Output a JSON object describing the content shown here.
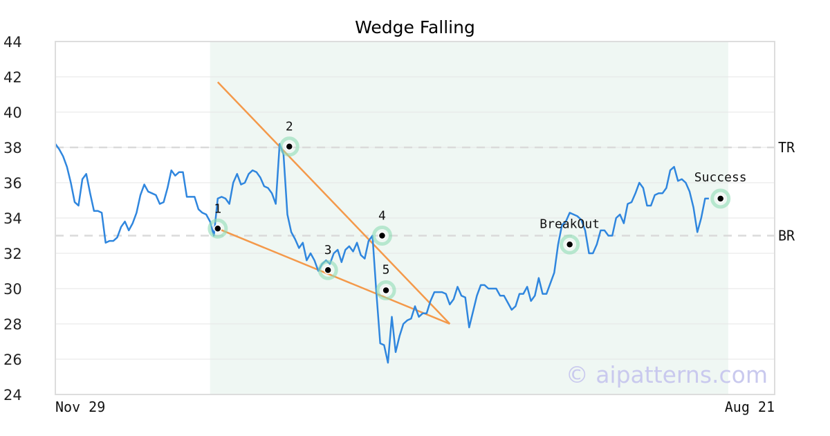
{
  "chart_data": {
    "type": "line",
    "title": "Wedge Falling",
    "ylim": [
      24,
      44
    ],
    "yticks": [
      24,
      26,
      28,
      30,
      32,
      34,
      36,
      38,
      40,
      42,
      44
    ],
    "xlim": [
      0,
      186
    ],
    "xtick_labels": [
      {
        "x": 0,
        "label": "Nov 29"
      },
      {
        "x": 186,
        "label": "Aug 21"
      }
    ],
    "grid": true,
    "shaded_region": {
      "x0": 40,
      "x1": 174,
      "color": "#eff7f3"
    },
    "series": [
      {
        "color": "#2f86de",
        "values": [
          38.2,
          37.9,
          37.5,
          36.9,
          36.0,
          34.9,
          34.7,
          36.2,
          36.5,
          35.4,
          34.4,
          34.4,
          34.3,
          32.6,
          32.7,
          32.7,
          32.9,
          33.5,
          33.8,
          33.3,
          33.7,
          34.3,
          35.3,
          35.9,
          35.5,
          35.4,
          35.3,
          34.8,
          34.9,
          35.7,
          36.7,
          36.4,
          36.6,
          36.6,
          35.2,
          35.2,
          35.2,
          34.5,
          34.3,
          34.2,
          33.8,
          33.0,
          35.1,
          35.2,
          35.1,
          34.8,
          36.0,
          36.5,
          35.9,
          36.0,
          36.5,
          36.7,
          36.6,
          36.3,
          35.8,
          35.7,
          35.4,
          34.8,
          38.2,
          37.6,
          34.2,
          33.2,
          32.8,
          32.3,
          32.6,
          31.6,
          32.0,
          31.6,
          31.0,
          31.4,
          31.6,
          31.4,
          32.0,
          32.2,
          31.5,
          32.2,
          32.4,
          32.1,
          32.6,
          31.9,
          31.7,
          32.7,
          33.0,
          29.8,
          26.9,
          26.8,
          25.8,
          28.4,
          26.4,
          27.3,
          28.0,
          28.2,
          28.3,
          29.0,
          28.4,
          28.6,
          28.6,
          29.3,
          29.8,
          29.8,
          29.8,
          29.7,
          29.1,
          29.4,
          30.1,
          29.6,
          29.5,
          27.8,
          28.7,
          29.6,
          30.2,
          30.2,
          30.0,
          30.0,
          30.0,
          29.6,
          29.6,
          29.2,
          28.8,
          29.0,
          29.7,
          29.7,
          30.1,
          29.3,
          29.6,
          30.6,
          29.7,
          29.7,
          30.3,
          30.9,
          32.5,
          33.6,
          33.8,
          34.3,
          34.2,
          34.1,
          33.9,
          33.3,
          32.0,
          32.0,
          32.5,
          33.3,
          33.3,
          33.0,
          33.0,
          34.0,
          34.2,
          33.7,
          34.8,
          34.9,
          35.4,
          36.0,
          35.7,
          34.7,
          34.7,
          35.3,
          35.4,
          35.4,
          35.7,
          36.7,
          36.9,
          36.1,
          36.2,
          36.0,
          35.5,
          34.6,
          33.2,
          34.0,
          35.1,
          35.1
        ]
      }
    ],
    "reference_lines": [
      {
        "y": 38.0,
        "label": "TR"
      },
      {
        "y": 33.0,
        "label": "BR"
      }
    ],
    "trend_lines": [
      {
        "x0": 42,
        "y0": 41.7,
        "x1": 102,
        "y1": 28.0,
        "color": "#f4994a"
      },
      {
        "x0": 42,
        "y0": 33.4,
        "x1": 102,
        "y1": 28.0,
        "color": "#f4994a"
      }
    ],
    "points": [
      {
        "x": 42,
        "y": 33.4,
        "label": "1"
      },
      {
        "x": 60.5,
        "y": 38.05,
        "label": "2"
      },
      {
        "x": 70.5,
        "y": 31.05,
        "label": "3"
      },
      {
        "x": 84.5,
        "y": 33.0,
        "label": "4"
      },
      {
        "x": 85.5,
        "y": 29.9,
        "label": "5"
      },
      {
        "x": 133,
        "y": 32.5,
        "label": "BreakOut"
      },
      {
        "x": 172,
        "y": 35.1,
        "label": "Success"
      }
    ],
    "watermark": "© aipatterns.com"
  }
}
